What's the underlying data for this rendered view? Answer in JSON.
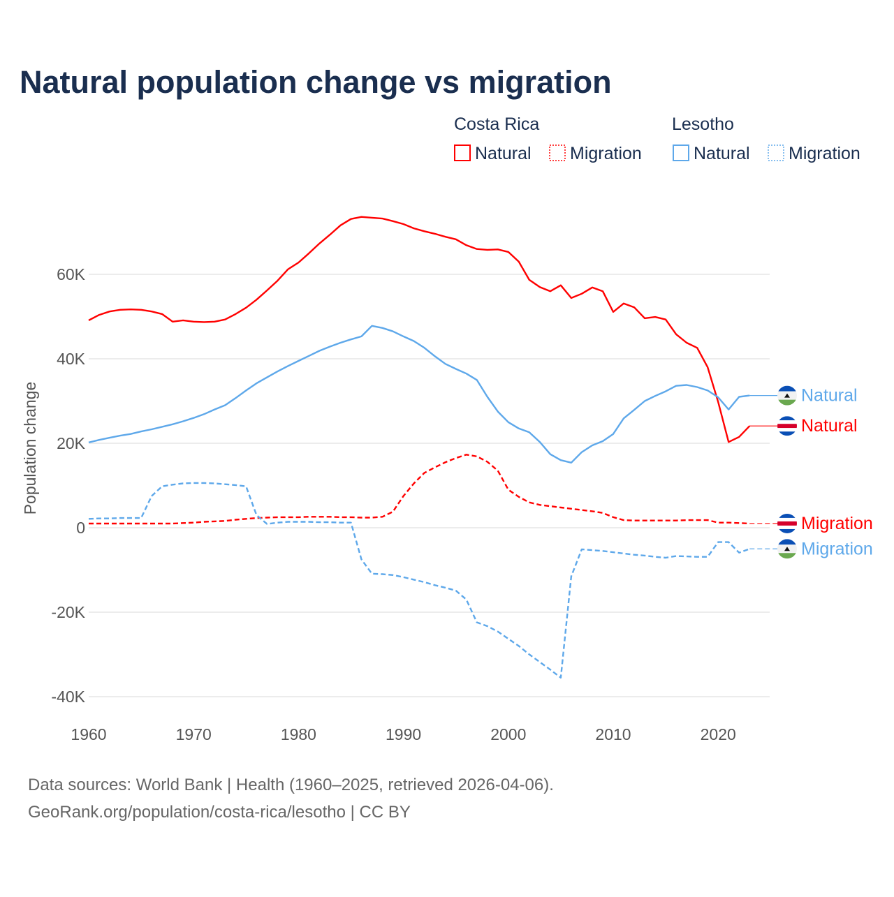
{
  "chart_data": {
    "type": "line",
    "title": "Natural population change vs migration",
    "ylabel": "Population change",
    "xlabel": "",
    "ylim": [
      -40000,
      75000
    ],
    "xlim": [
      1960,
      2025
    ],
    "y_ticks": [
      -40000,
      -20000,
      0,
      20000,
      40000,
      60000
    ],
    "y_tick_labels": [
      "-40K",
      "-20K",
      "0",
      "20K",
      "40K",
      "60K"
    ],
    "x_ticks": [
      1960,
      1970,
      1980,
      1990,
      2000,
      2010,
      2020
    ],
    "x_tick_labels": [
      "1960",
      "1970",
      "1980",
      "1990",
      "2000",
      "2010",
      "2020"
    ],
    "grid": "horizontal",
    "legend": {
      "placement": "top-right",
      "groups": [
        {
          "country": "Costa Rica",
          "items": [
            "Natural",
            "Migration"
          ]
        },
        {
          "country": "Lesotho",
          "items": [
            "Natural",
            "Migration"
          ]
        }
      ]
    },
    "x_start": 1960,
    "series": [
      {
        "name": "Natural",
        "country": "Costa Rica",
        "color": "#ff0000",
        "dash": false,
        "flag": "costa-rica",
        "values": [
          49100,
          50400,
          51200,
          51600,
          51700,
          51600,
          51200,
          50600,
          48800,
          49100,
          48800,
          48700,
          48800,
          49300,
          50600,
          52100,
          54000,
          56200,
          58500,
          61200,
          62800,
          65000,
          67300,
          69400,
          71600,
          73100,
          73600,
          73400,
          73200,
          72600,
          71900,
          70900,
          70200,
          69600,
          68900,
          68300,
          66900,
          66000,
          65800,
          65900,
          65300,
          63000,
          58700,
          57000,
          56000,
          57400,
          54400,
          55400,
          56900,
          56000,
          51100,
          53100,
          52200,
          49600,
          49900,
          49300,
          45800,
          43800,
          42600,
          38000,
          29800,
          20300,
          21500,
          24100
        ]
      },
      {
        "name": "Migration",
        "country": "Costa Rica",
        "color": "#ff0000",
        "dash": true,
        "flag": "costa-rica",
        "values": [
          1000,
          1000,
          1000,
          1000,
          1000,
          1000,
          1000,
          1000,
          1000,
          1100,
          1200,
          1400,
          1500,
          1600,
          1900,
          2100,
          2300,
          2400,
          2500,
          2500,
          2500,
          2600,
          2600,
          2600,
          2500,
          2500,
          2400,
          2400,
          2600,
          3800,
          7500,
          10500,
          13000,
          14300,
          15500,
          16500,
          17300,
          16900,
          15600,
          13500,
          9000,
          7300,
          6000,
          5400,
          5100,
          4800,
          4500,
          4200,
          3900,
          3500,
          2500,
          1800,
          1700,
          1700,
          1700,
          1700,
          1700,
          1800,
          1800,
          1800,
          1200,
          1200,
          1100,
          1000
        ]
      },
      {
        "name": "Natural",
        "country": "Lesotho",
        "color": "#5ea8ea",
        "dash": false,
        "flag": "lesotho",
        "values": [
          20200,
          20800,
          21300,
          21800,
          22200,
          22800,
          23300,
          23900,
          24500,
          25200,
          26000,
          26900,
          28000,
          29000,
          30700,
          32500,
          34200,
          35600,
          37000,
          38300,
          39500,
          40700,
          41900,
          42900,
          43800,
          44600,
          45300,
          47800,
          47300,
          46500,
          45300,
          44200,
          42600,
          40600,
          38800,
          37600,
          36500,
          35000,
          31000,
          27500,
          25000,
          23500,
          22600,
          20300,
          17400,
          16000,
          15400,
          17900,
          19500,
          20500,
          22200,
          25900,
          27900,
          30000,
          31200,
          32300,
          33600,
          33800,
          33300,
          32500,
          30900,
          28000,
          31000,
          31300
        ]
      },
      {
        "name": "Migration",
        "country": "Lesotho",
        "color": "#5ea8ea",
        "dash": true,
        "flag": "lesotho",
        "values": [
          2100,
          2200,
          2200,
          2300,
          2300,
          2300,
          7500,
          9800,
          10200,
          10500,
          10600,
          10600,
          10500,
          10300,
          10100,
          9800,
          3000,
          900,
          1200,
          1400,
          1400,
          1400,
          1300,
          1300,
          1200,
          1200,
          -7500,
          -10900,
          -11000,
          -11200,
          -11700,
          -12300,
          -12900,
          -13600,
          -14200,
          -14900,
          -17000,
          -22400,
          -23300,
          -24600,
          -26300,
          -28000,
          -30000,
          -31800,
          -33600,
          -35500,
          -11500,
          -5100,
          -5300,
          -5500,
          -5800,
          -6100,
          -6400,
          -6600,
          -6900,
          -7100,
          -6700,
          -6800,
          -6900,
          -6900,
          -3400,
          -3400,
          -5900,
          -5000
        ]
      }
    ],
    "source": "Data sources: World Bank | Health (1960–2025, retrieved 2026-04-06).",
    "attribution": "GeoRank.org/population/costa-rica/lesotho | CC BY"
  }
}
